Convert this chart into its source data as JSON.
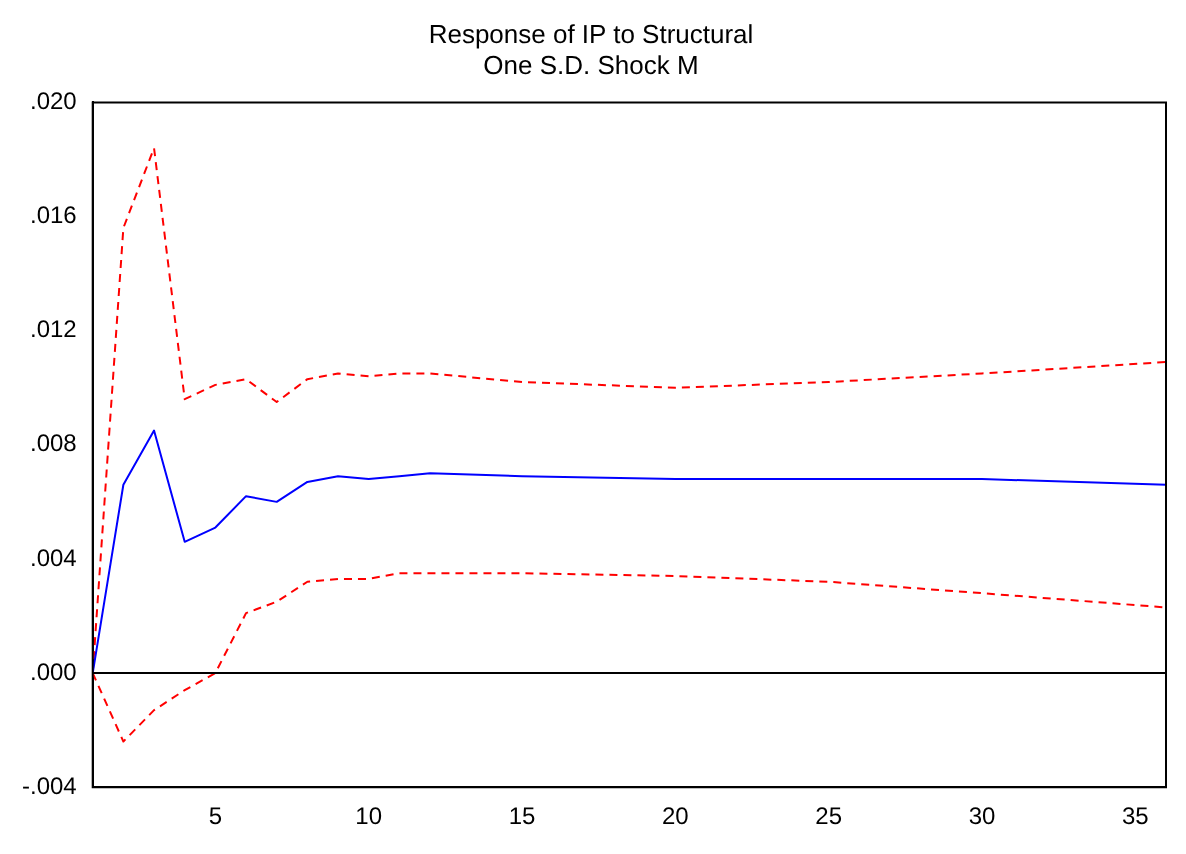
{
  "chart_data": {
    "type": "line",
    "title": "Response of IP to Structural\nOne S.D. Shock M",
    "x": [
      1,
      2,
      3,
      4,
      5,
      6,
      7,
      8,
      9,
      10,
      11,
      12,
      15,
      20,
      25,
      30,
      36
    ],
    "series": [
      {
        "color": "#0000ff",
        "line_style": "solid",
        "values": [
          0,
          0.0066,
          0.0085,
          0.0046,
          0.0051,
          0.0062,
          0.006,
          0.0067,
          0.0069,
          0.0068,
          0.0069,
          0.007,
          0.0069,
          0.0068,
          0.0068,
          0.0068,
          0.0066
        ]
      },
      {
        "color": "#ff0000",
        "line_style": "dashed",
        "values": [
          0,
          0.0156,
          0.0184,
          0.0096,
          0.0101,
          0.0103,
          0.0095,
          0.0103,
          0.0105,
          0.0104,
          0.0105,
          0.0105,
          0.0102,
          0.01,
          0.0102,
          0.0105,
          0.0109
        ]
      },
      {
        "color": "#ff0000",
        "line_style": "dashed",
        "values": [
          0,
          -0.0024,
          -0.0013,
          -0.0006,
          0,
          0.0021,
          0.0025,
          0.0032,
          0.0033,
          0.0033,
          0.0035,
          0.0035,
          0.0035,
          0.0034,
          0.0032,
          0.0028,
          0.0023
        ]
      }
    ],
    "xlim": [
      1,
      36
    ],
    "xticks": [
      5,
      10,
      15,
      20,
      25,
      30,
      35
    ],
    "ylim": [
      -0.004,
      0.02
    ],
    "yticks": [
      {
        "value": -0.004,
        "label": "-.004"
      },
      {
        "value": 0,
        "label": ".000"
      },
      {
        "value": 0.004,
        "label": ".004"
      },
      {
        "value": 0.008,
        "label": ".008"
      },
      {
        "value": 0.012,
        "label": ".012"
      },
      {
        "value": 0.016,
        "label": ".016"
      },
      {
        "value": 0.02,
        "label": ".020"
      }
    ],
    "ref_lines": [
      {
        "axis": "y",
        "value": 0,
        "color": "#000000"
      }
    ],
    "grid": false,
    "legend": false,
    "marker": "none"
  }
}
